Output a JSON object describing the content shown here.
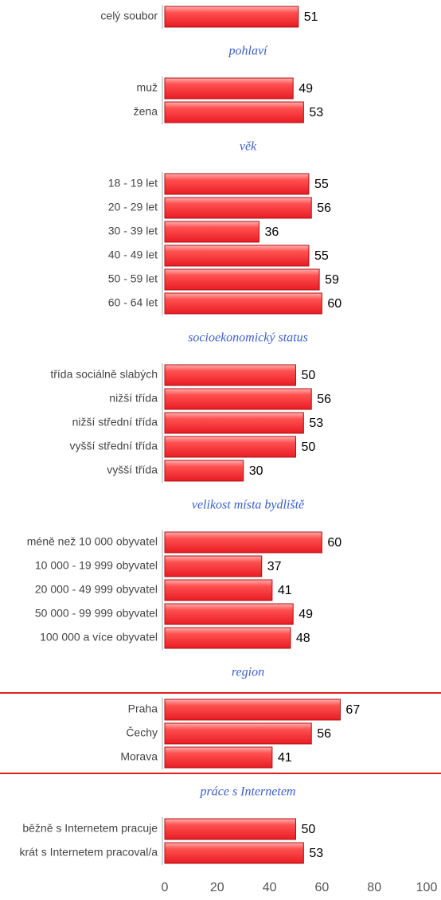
{
  "chart_data": {
    "type": "bar",
    "orientation": "horizontal",
    "color": "#f0383c",
    "xlim": [
      0,
      100
    ],
    "xticks": [
      0,
      20,
      40,
      60,
      80,
      100
    ],
    "groups": [
      {
        "categories": [
          "celý soubor"
        ],
        "values": [
          51
        ]
      },
      {
        "title": "pohlaví",
        "categories": [
          "muž",
          "žena"
        ],
        "values": [
          49,
          53
        ]
      },
      {
        "title": "věk",
        "categories": [
          "18 - 19 let",
          "20 - 29 let",
          "30 - 39 let",
          "40 - 49 let",
          "50 - 59 let",
          "60 - 64 let"
        ],
        "values": [
          55,
          56,
          36,
          55,
          59,
          60
        ]
      },
      {
        "title": "socioekonomický status",
        "categories": [
          "třída sociálně slabých",
          "nižší třída",
          "nižší střední třída",
          "vyšší střední třída",
          "vyšší třída"
        ],
        "values": [
          50,
          56,
          53,
          50,
          30
        ]
      },
      {
        "title": "velikost místa bydliště",
        "categories": [
          "méně než 10 000 obyvatel",
          "10 000 - 19 999 obyvatel",
          "20 000 - 49 999 obyvatel",
          "50 000 - 99 999 obyvatel",
          "100 000 a více obyvatel"
        ],
        "values": [
          60,
          37,
          41,
          49,
          48
        ]
      },
      {
        "title": "region",
        "categories": [
          "Praha",
          "Čechy",
          "Morava"
        ],
        "values": [
          67,
          56,
          41
        ]
      },
      {
        "title": "práce s Internetem",
        "categories": [
          "běžně s Internetem pracuje",
          "krát s Internetem pracoval/a"
        ],
        "values": [
          50,
          53
        ]
      }
    ]
  }
}
